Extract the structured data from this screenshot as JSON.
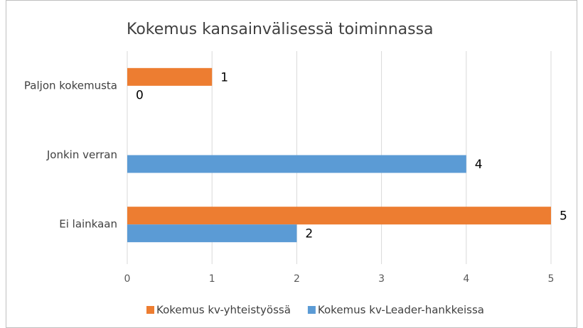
{
  "chart_data": {
    "type": "hbar",
    "title": "Kokemus kansainvälisessä toiminnassa",
    "categories": [
      "Paljon kokemusta",
      "Jonkin verran",
      "Ei lainkaan"
    ],
    "series": [
      {
        "name": "Kokemus kv-yhteistyössä",
        "color": "#ed7d31",
        "values": [
          1,
          null,
          5
        ]
      },
      {
        "name": "Kokemus kv-Leader-hankkeissa",
        "color": "#5b9bd5",
        "values": [
          0,
          4,
          2
        ]
      }
    ],
    "xlim": [
      0,
      5
    ],
    "xticks": [
      0,
      1,
      2,
      3,
      4,
      5
    ],
    "grid": true,
    "legend": "bottom"
  }
}
